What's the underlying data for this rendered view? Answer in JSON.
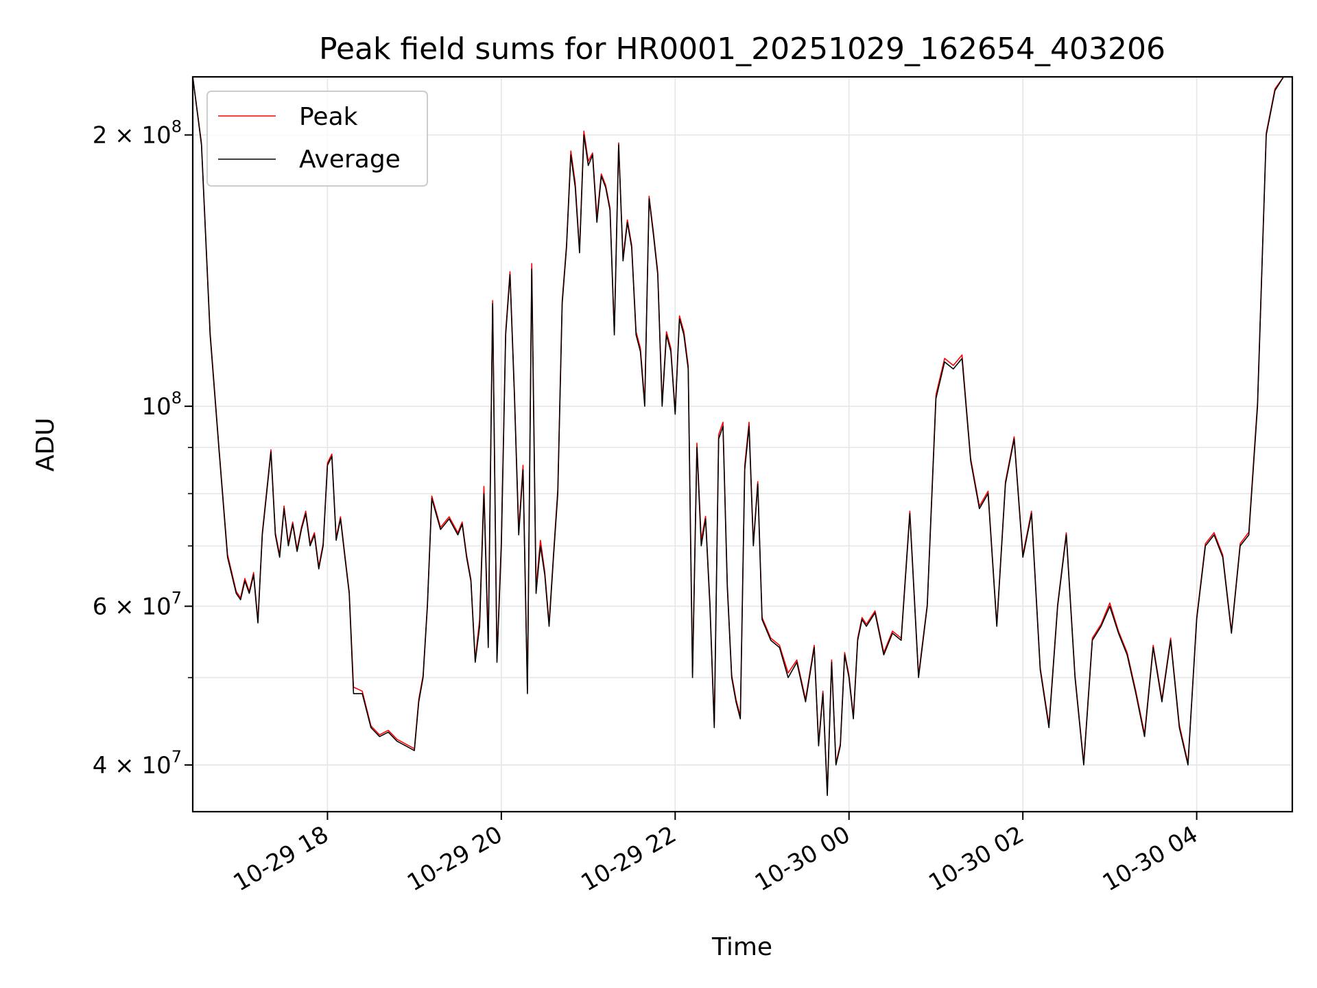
{
  "chart_data": {
    "type": "line",
    "title": "Peak field sums for HR0001_20251029_162654_403206",
    "xlabel": "Time",
    "ylabel": "ADU",
    "yscale": "log",
    "ylim": [
      35500000,
      232000000
    ],
    "xlim_hours": [
      16.45,
      5.1
    ],
    "grid": true,
    "legend_position": "upper-left",
    "x_ticks": [
      {
        "label": "10-29 18",
        "hour": 18
      },
      {
        "label": "10-29 20",
        "hour": 20
      },
      {
        "label": "10-29 22",
        "hour": 22
      },
      {
        "label": "10-30 00",
        "hour": 24
      },
      {
        "label": "10-30 02",
        "hour": 26
      },
      {
        "label": "10-30 04",
        "hour": 28
      }
    ],
    "y_ticks": [
      {
        "mant": "4",
        "exp": "7",
        "value": 40000000
      },
      {
        "mant": "6",
        "exp": "7",
        "value": 60000000
      },
      {
        "mant": "",
        "exp": "8",
        "value": 100000000
      },
      {
        "mant": "2",
        "exp": "8",
        "value": 200000000
      }
    ],
    "series": [
      {
        "name": "Peak",
        "color": "#ff0000"
      },
      {
        "name": "Average",
        "color": "#000000"
      }
    ],
    "x_hours": [
      16.45,
      16.55,
      16.65,
      16.75,
      16.85,
      16.95,
      17.0,
      17.05,
      17.1,
      17.15,
      17.2,
      17.25,
      17.3,
      17.35,
      17.4,
      17.45,
      17.5,
      17.55,
      17.6,
      17.65,
      17.7,
      17.75,
      17.8,
      17.85,
      17.9,
      17.95,
      18.0,
      18.05,
      18.1,
      18.15,
      18.2,
      18.25,
      18.3,
      18.4,
      18.5,
      18.6,
      18.7,
      18.8,
      18.9,
      19.0,
      19.05,
      19.1,
      19.15,
      19.2,
      19.3,
      19.4,
      19.5,
      19.55,
      19.6,
      19.65,
      19.7,
      19.75,
      19.8,
      19.85,
      19.9,
      19.95,
      20.0,
      20.05,
      20.1,
      20.15,
      20.2,
      20.25,
      20.3,
      20.35,
      20.4,
      20.45,
      20.5,
      20.55,
      20.6,
      20.65,
      20.7,
      20.75,
      20.8,
      20.85,
      20.9,
      20.95,
      21.0,
      21.05,
      21.1,
      21.15,
      21.2,
      21.25,
      21.3,
      21.35,
      21.4,
      21.45,
      21.5,
      21.55,
      21.6,
      21.65,
      21.7,
      21.75,
      21.8,
      21.85,
      21.9,
      21.95,
      22.0,
      22.05,
      22.1,
      22.15,
      22.2,
      22.25,
      22.3,
      22.35,
      22.4,
      22.45,
      22.5,
      22.55,
      22.6,
      22.65,
      22.7,
      22.75,
      22.8,
      22.85,
      22.9,
      22.95,
      23.0,
      23.1,
      23.2,
      23.3,
      23.4,
      23.5,
      23.6,
      23.65,
      23.7,
      23.75,
      23.8,
      23.85,
      23.9,
      23.95,
      24.0,
      24.05,
      24.1,
      24.15,
      24.2,
      24.3,
      24.4,
      24.5,
      24.6,
      24.7,
      24.8,
      24.9,
      25.0,
      25.1,
      25.2,
      25.3,
      25.4,
      25.5,
      25.6,
      25.7,
      25.8,
      25.9,
      26.0,
      26.1,
      26.2,
      26.3,
      26.4,
      26.5,
      26.6,
      26.7,
      26.8,
      26.9,
      27.0,
      27.1,
      27.2,
      27.3,
      27.4,
      27.5,
      27.6,
      27.7,
      27.8,
      27.9,
      28.0,
      28.1,
      28.2,
      28.3,
      28.4,
      28.5,
      28.6,
      28.7,
      28.8,
      28.9,
      29.0,
      29.05,
      29.1
    ],
    "average_values": [
      232000000,
      195000000,
      120000000,
      90000000,
      68000000,
      62000000,
      61000000,
      64000000,
      62000000,
      65000000,
      57500000,
      72000000,
      80000000,
      89000000,
      72000000,
      68000000,
      77000000,
      70000000,
      74000000,
      69000000,
      73000000,
      76000000,
      70000000,
      72000000,
      66000000,
      70000000,
      86000000,
      88000000,
      71000000,
      75000000,
      68000000,
      62000000,
      48000000,
      48000000,
      44000000,
      43000000,
      43500000,
      42500000,
      42000000,
      41500000,
      47000000,
      50000000,
      60000000,
      79000000,
      73000000,
      75000000,
      72000000,
      74000000,
      68000000,
      64000000,
      52000000,
      57000000,
      80000000,
      54000000,
      130000000,
      52000000,
      70000000,
      120000000,
      140000000,
      103000000,
      72000000,
      85000000,
      48000000,
      142000000,
      62000000,
      70000000,
      65000000,
      57000000,
      68000000,
      80000000,
      130000000,
      150000000,
      190000000,
      175000000,
      148000000,
      200000000,
      185000000,
      190000000,
      160000000,
      180000000,
      175000000,
      165000000,
      120000000,
      195000000,
      145000000,
      160000000,
      150000000,
      120000000,
      115000000,
      100000000,
      170000000,
      155000000,
      140000000,
      100000000,
      120000000,
      115000000,
      98000000,
      125000000,
      120000000,
      110000000,
      50000000,
      90000000,
      70000000,
      75000000,
      60000000,
      44000000,
      92000000,
      95000000,
      63000000,
      50000000,
      47000000,
      45000000,
      85000000,
      95000000,
      70000000,
      82000000,
      58000000,
      55000000,
      54000000,
      50000000,
      52000000,
      47000000,
      54000000,
      42000000,
      48000000,
      37000000,
      52000000,
      40000000,
      42000000,
      53000000,
      50000000,
      45000000,
      55000000,
      58000000,
      57000000,
      59000000,
      53000000,
      56000000,
      55000000,
      76000000,
      50000000,
      60000000,
      102000000,
      112000000,
      110000000,
      113000000,
      87000000,
      77000000,
      80000000,
      57000000,
      82000000,
      92000000,
      68000000,
      76000000,
      51000000,
      44000000,
      60000000,
      72000000,
      50000000,
      40000000,
      55000000,
      57000000,
      60000000,
      56000000,
      53000000,
      48000000,
      43000000,
      54000000,
      47000000,
      55000000,
      44000000,
      40000000,
      58000000,
      70000000,
      72000000,
      68000000,
      56000000,
      70000000,
      72000000,
      100000000,
      200000000,
      224000000,
      232000000
    ],
    "peak_values": [
      232000000,
      196000000,
      121000000,
      90500000,
      68500000,
      62300000,
      61300000,
      64400000,
      62300000,
      65400000,
      57800000,
      72400000,
      80500000,
      89500000,
      72400000,
      68400000,
      77500000,
      70400000,
      74400000,
      69400000,
      73400000,
      76500000,
      70400000,
      72400000,
      66400000,
      70400000,
      86500000,
      88500000,
      71400000,
      75400000,
      68400000,
      62300000,
      48800000,
      48300000,
      44200000,
      43200000,
      43700000,
      42700000,
      42200000,
      41700000,
      47300000,
      50300000,
      60300000,
      79500000,
      73400000,
      75400000,
      72400000,
      74400000,
      68400000,
      64300000,
      52300000,
      58000000,
      81500000,
      55000000,
      131000000,
      52500000,
      71000000,
      121000000,
      141000000,
      104000000,
      73000000,
      86000000,
      48500000,
      144000000,
      63000000,
      71000000,
      65500000,
      57500000,
      68500000,
      81000000,
      131000000,
      151000000,
      192000000,
      177000000,
      149000000,
      202000000,
      187000000,
      191000000,
      162000000,
      181000000,
      176000000,
      166000000,
      121000000,
      196000000,
      146000000,
      161000000,
      151000000,
      121000000,
      116000000,
      101000000,
      171000000,
      156000000,
      141000000,
      101000000,
      121000000,
      116000000,
      98500000,
      126000000,
      121000000,
      111000000,
      50500000,
      91000000,
      71000000,
      75500000,
      60500000,
      44300000,
      93000000,
      96000000,
      63500000,
      50300000,
      47300000,
      45300000,
      86000000,
      96000000,
      70500000,
      82500000,
      58300000,
      55300000,
      54300000,
      50600000,
      52300000,
      47300000,
      54300000,
      42300000,
      48300000,
      37200000,
      52300000,
      40200000,
      42200000,
      53300000,
      50300000,
      45300000,
      55300000,
      58300000,
      57300000,
      59300000,
      53300000,
      56300000,
      55300000,
      76500000,
      50300000,
      60300000,
      103000000,
      113000000,
      111000000,
      114000000,
      87500000,
      77500000,
      80500000,
      57300000,
      82500000,
      92500000,
      68400000,
      76500000,
      51300000,
      44300000,
      60300000,
      72400000,
      50300000,
      40200000,
      55300000,
      57300000,
      60500000,
      56300000,
      53300000,
      48300000,
      43300000,
      54300000,
      47300000,
      55300000,
      44300000,
      40200000,
      58300000,
      70400000,
      72400000,
      68400000,
      56300000,
      70400000,
      72500000,
      101000000,
      201000000,
      225000000,
      232000000
    ]
  }
}
